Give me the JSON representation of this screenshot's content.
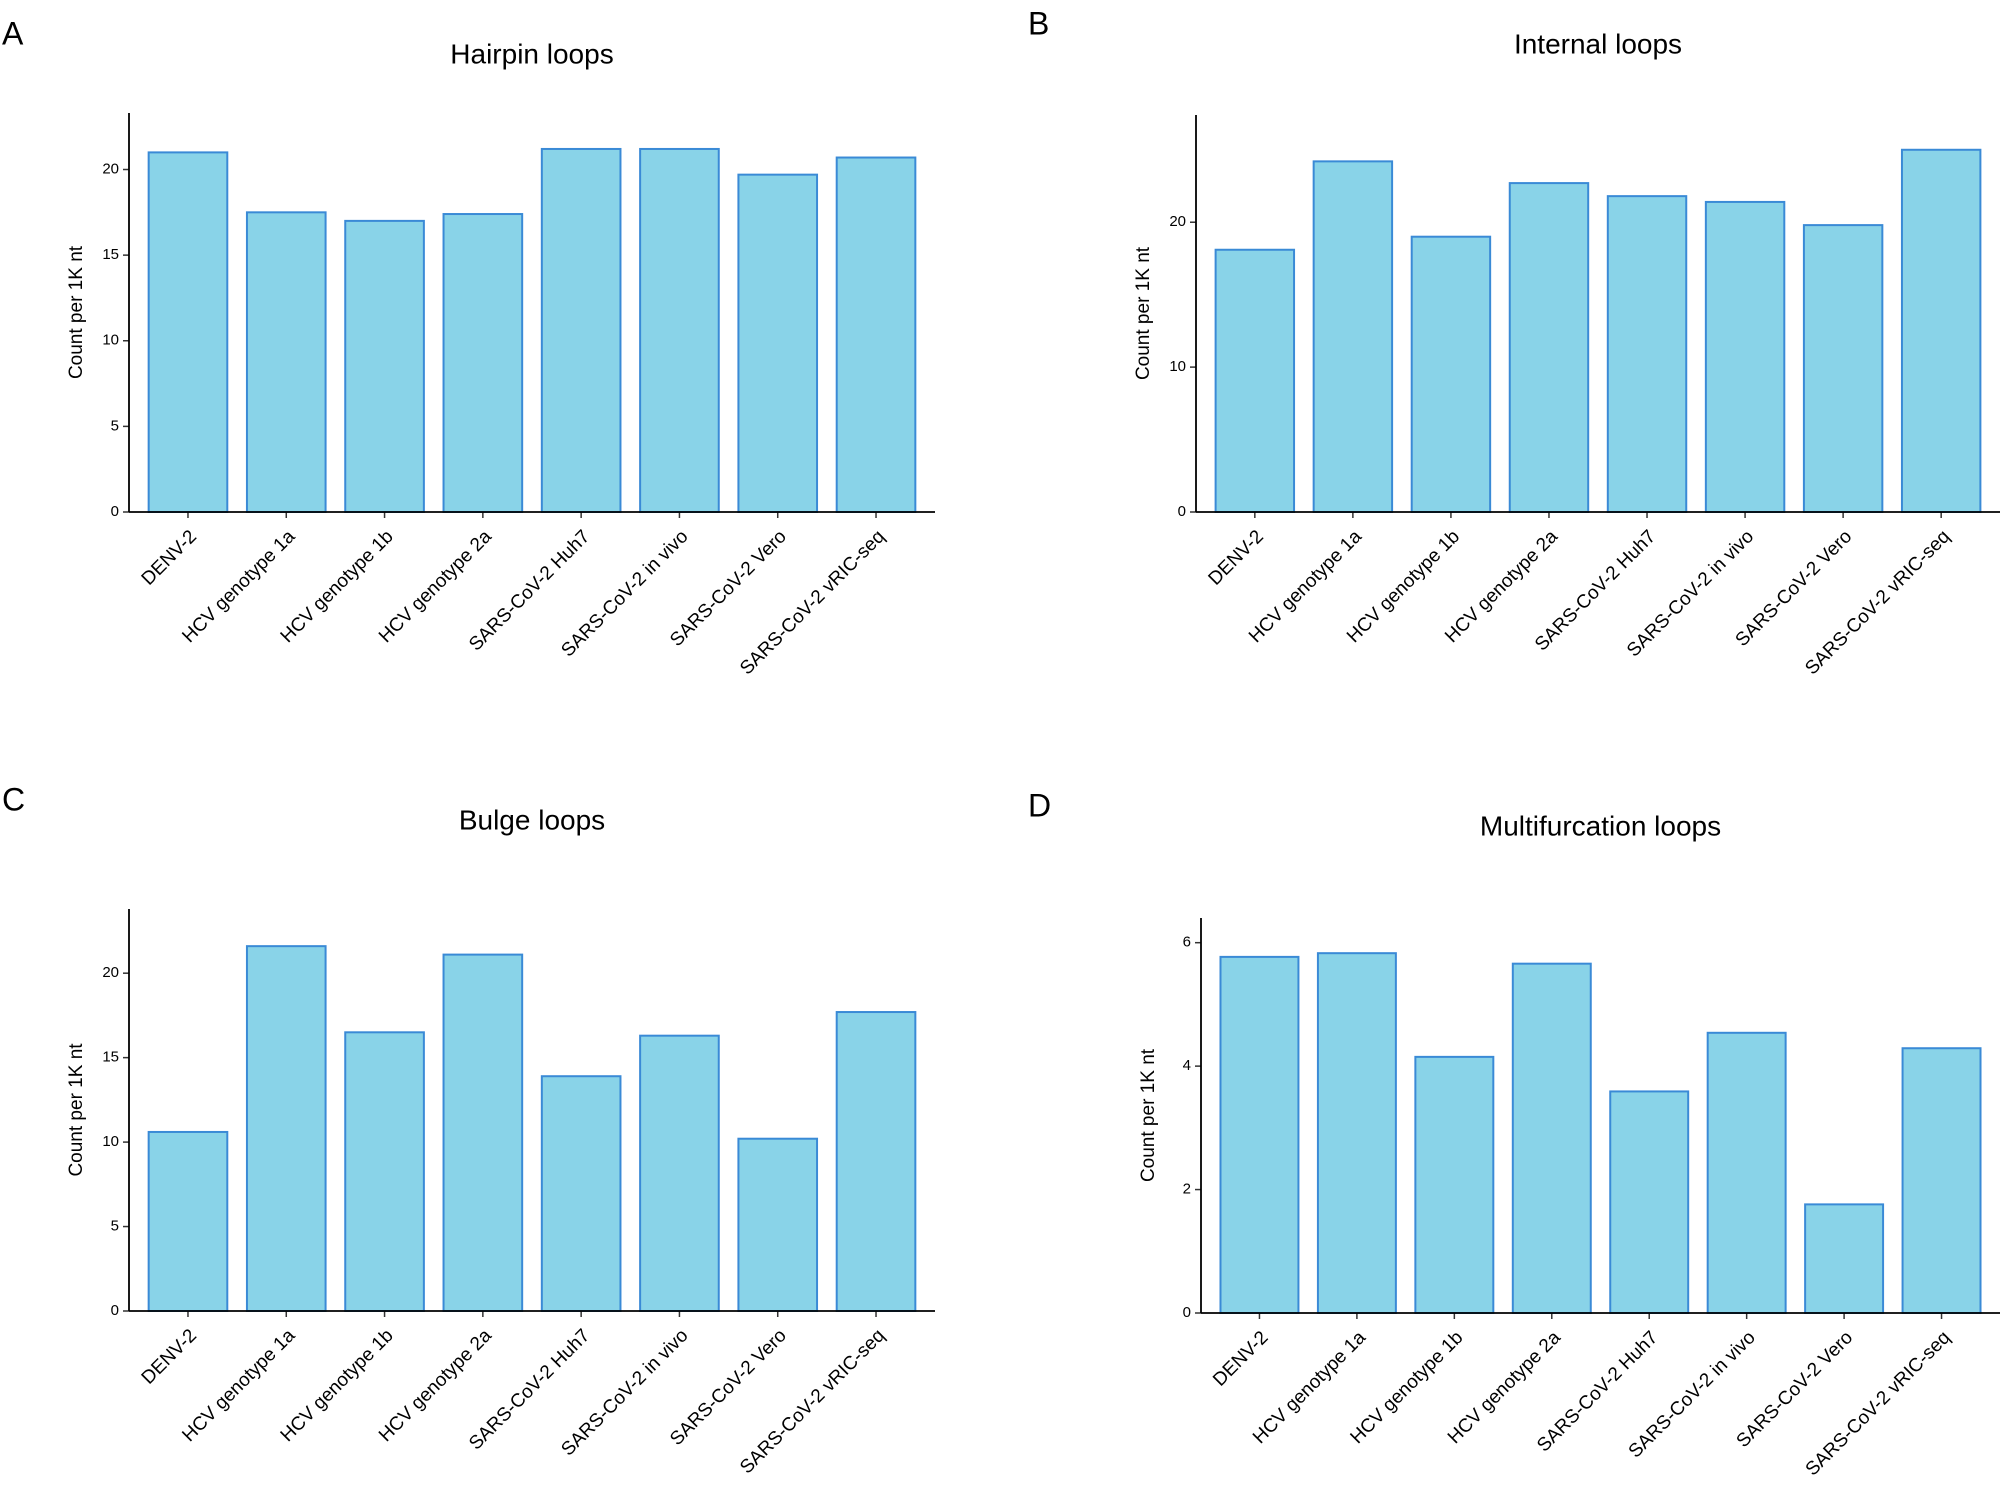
{
  "chart_data": [
    {
      "type": "bar",
      "panel": "A",
      "title": "Hairpin loops",
      "ylabel": "Count per 1K nt",
      "categories": [
        "DENV-2",
        "HCV genotype 1a",
        "HCV genotype 1b",
        "HCV genotype 2a",
        "SARS-CoV-2 Huh7",
        "SARS-CoV-2 in vivo",
        "SARS-CoV-2 Vero",
        "SARS-CoV-2 vRIC-seq"
      ],
      "values": [
        21.0,
        17.5,
        17.0,
        17.4,
        21.2,
        21.2,
        19.7,
        20.7
      ],
      "color": "#89d3e8",
      "edgecolor": "#3a8ad6",
      "ylim": [
        0,
        23.3
      ],
      "yticks": [
        0,
        5,
        10,
        15,
        20
      ]
    },
    {
      "type": "bar",
      "panel": "B",
      "title": "Internal loops",
      "ylabel": "Count per 1K nt",
      "categories": [
        "DENV-2",
        "HCV genotype 1a",
        "HCV genotype 1b",
        "HCV genotype 2a",
        "SARS-CoV-2 Huh7",
        "SARS-CoV-2 in vivo",
        "SARS-CoV-2 Vero",
        "SARS-CoV-2 vRIC-seq"
      ],
      "values": [
        18.1,
        24.2,
        19.0,
        22.7,
        21.8,
        21.4,
        19.8,
        25.0
      ],
      "color": "#89d3e8",
      "edgecolor": "#3a8ad6",
      "ylim": [
        0,
        27.4
      ],
      "yticks": [
        0,
        10,
        20
      ]
    },
    {
      "type": "bar",
      "panel": "C",
      "title": "Bulge loops",
      "ylabel": "Count per 1K nt",
      "categories": [
        "DENV-2",
        "HCV genotype 1a",
        "HCV genotype 1b",
        "HCV genotype 2a",
        "SARS-CoV-2 Huh7",
        "SARS-CoV-2 in vivo",
        "SARS-CoV-2 Vero",
        "SARS-CoV-2 vRIC-seq"
      ],
      "values": [
        10.6,
        21.6,
        16.5,
        21.1,
        13.9,
        16.3,
        10.2,
        17.7
      ],
      "color": "#89d3e8",
      "edgecolor": "#3a8ad6",
      "ylim": [
        0,
        23.8
      ],
      "yticks": [
        0,
        5,
        10,
        15,
        20
      ]
    },
    {
      "type": "bar",
      "panel": "D",
      "title": "Multifurcation loops",
      "ylabel": "Count per 1K nt",
      "categories": [
        "DENV-2",
        "HCV genotype 1a",
        "HCV genotype 1b",
        "HCV genotype 2a",
        "SARS-CoV-2 Huh7",
        "SARS-CoV-2 in vivo",
        "SARS-CoV-2 Vero",
        "SARS-CoV-2 vRIC-seq"
      ],
      "values": [
        5.77,
        5.83,
        4.15,
        5.66,
        3.59,
        4.54,
        1.76,
        4.29
      ],
      "color": "#89d3e8",
      "edgecolor": "#3a8ad6",
      "ylim": [
        0,
        6.4
      ],
      "yticks": [
        0,
        2,
        4,
        6
      ]
    }
  ]
}
